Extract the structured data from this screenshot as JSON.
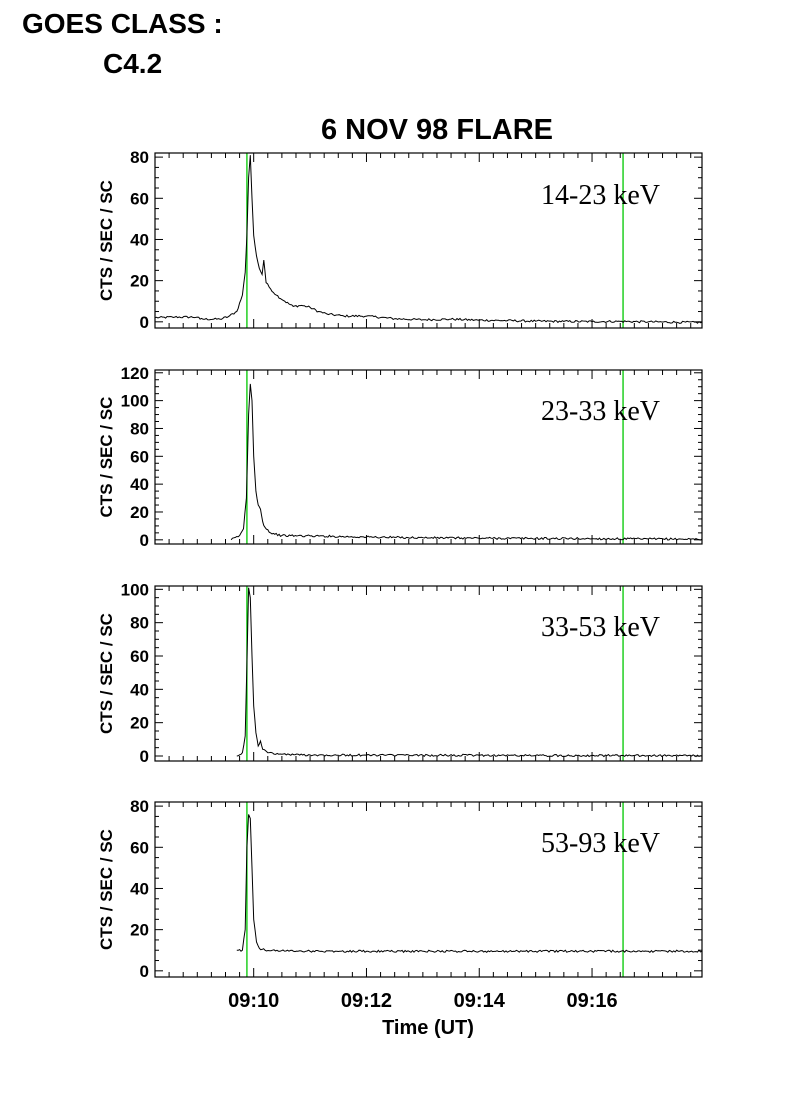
{
  "header": {
    "goes_label": "GOES CLASS :",
    "goes_class": "C4.2"
  },
  "colors": {
    "marker_line": "#00c800",
    "trace": "#000000",
    "axes": "#000000"
  },
  "chart_data": {
    "type": "line",
    "title": "6 NOV 98 FLARE",
    "xlabel": "Time (UT)",
    "x_unit": "minutes since 09:00 UT",
    "xlim": [
      8.25,
      17.95
    ],
    "xticks": [
      {
        "value": 10,
        "label": "09:10"
      },
      {
        "value": 12,
        "label": "09:12"
      },
      {
        "value": 14,
        "label": "09:14"
      },
      {
        "value": 16,
        "label": "09:16"
      }
    ],
    "vertical_markers": [
      9.88,
      16.55
    ],
    "panels": [
      {
        "name": "14-23 keV",
        "ylabel": "CTS / SEC / SC",
        "ylim": [
          -3,
          82
        ],
        "yticks": [
          0,
          20,
          40,
          60,
          80
        ],
        "points": [
          [
            8.25,
            2
          ],
          [
            8.6,
            2.3
          ],
          [
            9.0,
            2.3
          ],
          [
            9.05,
            1.3
          ],
          [
            9.4,
            1.3
          ],
          [
            9.55,
            2.5
          ],
          [
            9.7,
            5
          ],
          [
            9.8,
            13
          ],
          [
            9.85,
            24
          ],
          [
            9.88,
            42
          ],
          [
            9.91,
            70
          ],
          [
            9.94,
            81
          ],
          [
            9.97,
            60
          ],
          [
            10.0,
            42
          ],
          [
            10.05,
            32
          ],
          [
            10.1,
            26
          ],
          [
            10.15,
            23
          ],
          [
            10.18,
            30
          ],
          [
            10.22,
            19
          ],
          [
            10.3,
            16
          ],
          [
            10.4,
            13
          ],
          [
            10.55,
            10
          ],
          [
            10.7,
            7.5
          ],
          [
            10.85,
            8
          ],
          [
            11.0,
            7
          ],
          [
            11.15,
            5
          ],
          [
            11.3,
            3.8
          ],
          [
            11.6,
            2.8
          ],
          [
            12.0,
            2.8
          ],
          [
            12.5,
            1.5
          ],
          [
            13.0,
            1
          ],
          [
            13.5,
            1.3
          ],
          [
            14.0,
            0.8
          ],
          [
            14.5,
            0.6
          ],
          [
            15.0,
            0.3
          ],
          [
            15.5,
            0.2
          ],
          [
            16.0,
            0.1
          ],
          [
            16.5,
            0.2
          ],
          [
            17.0,
            0
          ],
          [
            17.5,
            -0.2
          ],
          [
            17.95,
            -0.3
          ]
        ]
      },
      {
        "name": "23-33 keV",
        "ylabel": "CTS / SEC / SC",
        "ylim": [
          -3,
          122
        ],
        "yticks": [
          0,
          20,
          40,
          60,
          80,
          100,
          120
        ],
        "points": [
          [
            9.6,
            0
          ],
          [
            9.75,
            3
          ],
          [
            9.82,
            8
          ],
          [
            9.87,
            30
          ],
          [
            9.91,
            90
          ],
          [
            9.94,
            112
          ],
          [
            9.97,
            100
          ],
          [
            10.0,
            60
          ],
          [
            10.04,
            35
          ],
          [
            10.08,
            25
          ],
          [
            10.12,
            22
          ],
          [
            10.16,
            13
          ],
          [
            10.2,
            9
          ],
          [
            10.3,
            5
          ],
          [
            10.5,
            3
          ],
          [
            11.0,
            2.8
          ],
          [
            12.0,
            2
          ],
          [
            13.0,
            1.5
          ],
          [
            14.0,
            1.2
          ],
          [
            15.0,
            1
          ],
          [
            16.0,
            0.8
          ],
          [
            17.0,
            0.6
          ],
          [
            17.95,
            0.5
          ]
        ]
      },
      {
        "name": "33-53 keV",
        "ylabel": "CTS / SEC / SC",
        "ylim": [
          -3,
          102
        ],
        "yticks": [
          0,
          20,
          40,
          60,
          80,
          100
        ],
        "points": [
          [
            9.7,
            0
          ],
          [
            9.8,
            2
          ],
          [
            9.85,
            12
          ],
          [
            9.88,
            55
          ],
          [
            9.91,
            101
          ],
          [
            9.94,
            95
          ],
          [
            9.97,
            60
          ],
          [
            10.0,
            30
          ],
          [
            10.04,
            14
          ],
          [
            10.08,
            6
          ],
          [
            10.12,
            9
          ],
          [
            10.16,
            4
          ],
          [
            10.25,
            2
          ],
          [
            10.5,
            1
          ],
          [
            11.0,
            0.6
          ],
          [
            12.0,
            0.5
          ],
          [
            13.0,
            0.4
          ],
          [
            14.0,
            0.4
          ],
          [
            15.0,
            0.3
          ],
          [
            16.0,
            0.3
          ],
          [
            17.0,
            0.2
          ],
          [
            17.95,
            0.2
          ]
        ]
      },
      {
        "name": "53-93 keV",
        "ylabel": "CTS / SEC / SC",
        "ylim": [
          -3,
          82
        ],
        "yticks": [
          0,
          20,
          40,
          60,
          80
        ],
        "points": [
          [
            9.7,
            10
          ],
          [
            9.8,
            10
          ],
          [
            9.85,
            20
          ],
          [
            9.88,
            60
          ],
          [
            9.91,
            76
          ],
          [
            9.94,
            74
          ],
          [
            9.97,
            50
          ],
          [
            10.0,
            25
          ],
          [
            10.05,
            14
          ],
          [
            10.1,
            11
          ],
          [
            10.2,
            10
          ],
          [
            11.0,
            9.5
          ],
          [
            12.0,
            9.5
          ],
          [
            13.0,
            9.5
          ],
          [
            14.0,
            9.5
          ],
          [
            15.0,
            9.5
          ],
          [
            16.0,
            9.5
          ],
          [
            17.0,
            9.5
          ],
          [
            17.95,
            9.5
          ]
        ]
      }
    ]
  }
}
